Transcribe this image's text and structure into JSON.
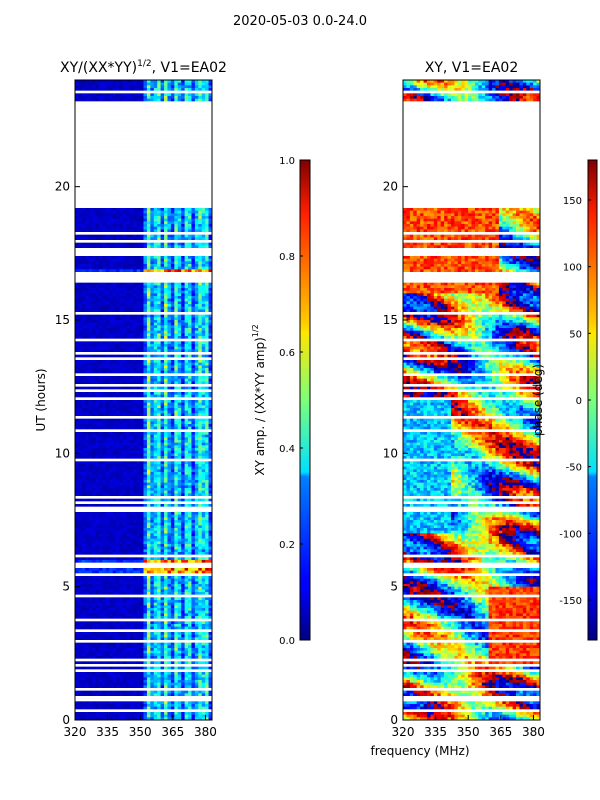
{
  "suptitle": "2020-05-03 0.0-24.0",
  "xlabel": "frequency (MHz)",
  "colors": {
    "empty_row": "#ffffff",
    "amp_background": "#00008f"
  },
  "chart_data": [
    {
      "type": "heatmap",
      "title_main": "XY/(XX*YY)",
      "title_sup": "1/2",
      "title_tail": ", V1=EA02",
      "ylabel": "UT (hours)",
      "xlabel": "",
      "xlim": [
        320,
        383
      ],
      "ylim": [
        0,
        24
      ],
      "xticks": [
        320,
        335,
        350,
        365,
        380
      ],
      "yticks": [
        0,
        5,
        10,
        15,
        20
      ],
      "colorbar": {
        "label_main": "XY amp. / (XX*YY amp)",
        "label_sup": "1/2",
        "range": [
          0.0,
          1.0
        ],
        "ticks": [
          "0.0",
          "0.2",
          "0.4",
          "0.6",
          "0.8",
          "1.0"
        ],
        "tick_values": [
          0.0,
          0.2,
          0.4,
          0.6,
          0.8,
          1.0
        ]
      },
      "data_gap_hours": [
        19.4,
        23.0
      ],
      "band_start_mhz": 352,
      "band_center_mhz": [
        354,
        358,
        362,
        367,
        372,
        377,
        380
      ],
      "hot_rows_hours": [
        5.7,
        16.7
      ]
    },
    {
      "type": "heatmap",
      "title": "XY, V1=EA02",
      "ylabel": "",
      "xlabel": "frequency (MHz)",
      "xlim": [
        320,
        383
      ],
      "ylim": [
        0,
        24
      ],
      "xticks": [
        320,
        335,
        350,
        365,
        380
      ],
      "yticks": [
        0,
        5,
        10,
        15,
        20
      ],
      "colorbar": {
        "label": "phase (deg)",
        "range": [
          -180,
          180
        ],
        "ticks": [
          "-150",
          "-100",
          "-50",
          "0",
          "50",
          "100",
          "150"
        ],
        "tick_values": [
          -150,
          -100,
          -50,
          0,
          50,
          100,
          150
        ]
      },
      "data_gap_hours": [
        19.4,
        23.0
      ]
    }
  ]
}
